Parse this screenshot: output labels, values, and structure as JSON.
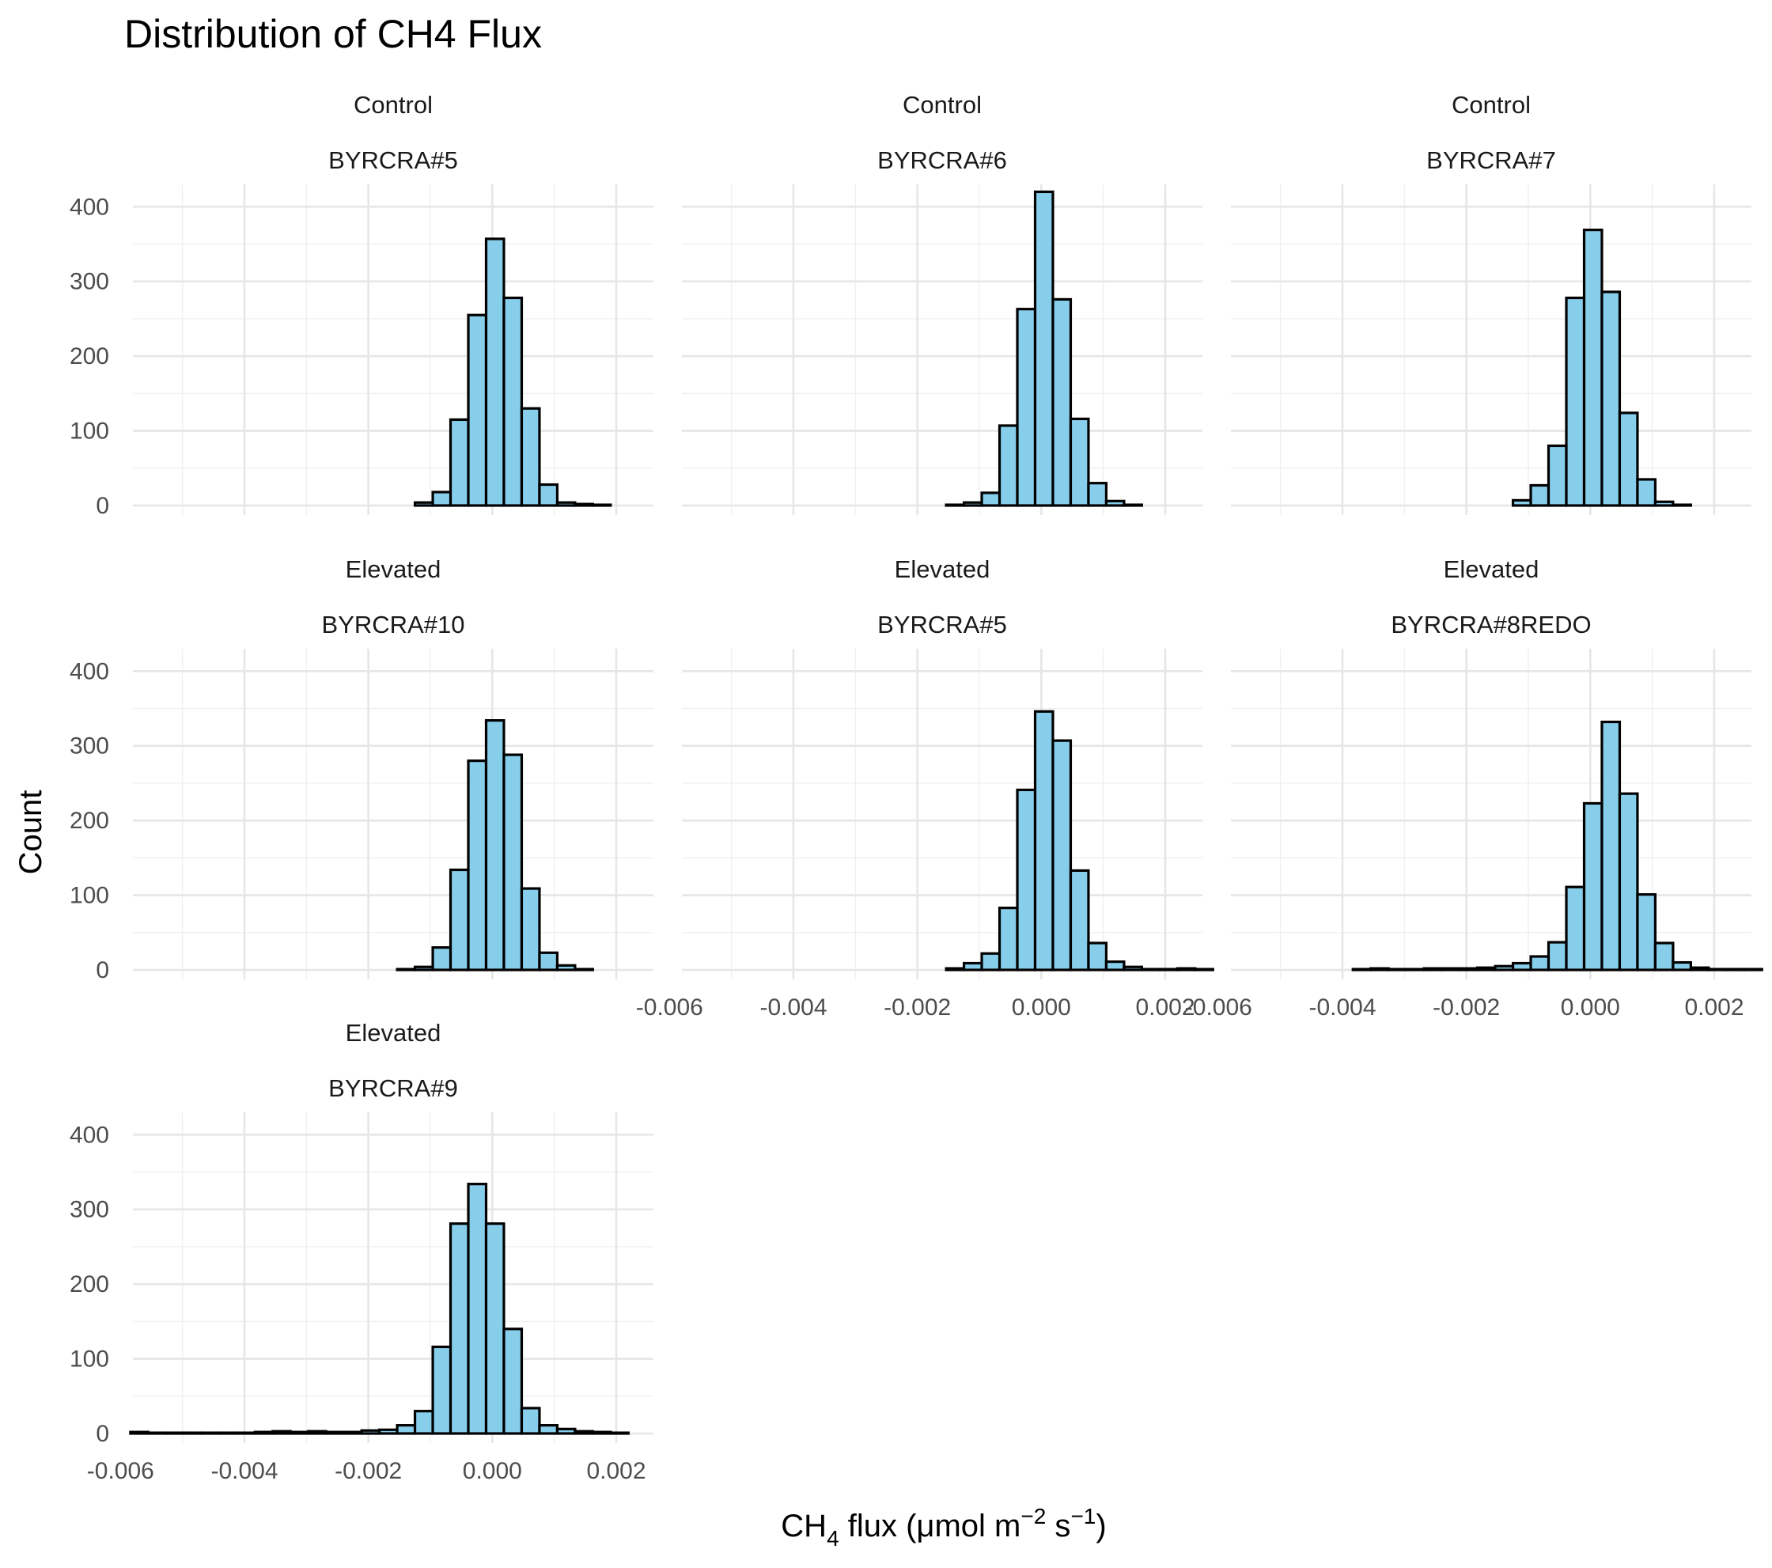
{
  "chart_data": {
    "type": "histogram",
    "title": "Distribution of CH4 Flux",
    "xlabel": {
      "base": "CH",
      "sub": "4",
      "text": " flux (μmol m",
      "sup1": "−2",
      "mid": " s",
      "sup2": "−1",
      "end": ")"
    },
    "ylabel": "Count",
    "bar_color": "#87CEEB",
    "bar_outline": "#000000",
    "xlim": [
      -0.0058,
      0.0026
    ],
    "ylim": [
      0,
      430
    ],
    "x_ticks": [
      -0.006,
      -0.004,
      -0.002,
      0.0,
      0.002
    ],
    "x_tick_labels": [
      "-0.006",
      "-0.004",
      "-0.002",
      "0.000",
      "0.002"
    ],
    "y_ticks": [
      0,
      100,
      200,
      300,
      400
    ],
    "y_tick_labels": [
      "0",
      "100",
      "200",
      "300",
      "400"
    ],
    "bins": 30,
    "bin_start": -0.00584,
    "bin_width": 0.000287,
    "facets": [
      {
        "treatment": "Control",
        "plot": "BYRCRA#5",
        "counts": [
          0,
          0,
          0,
          0,
          0,
          0,
          0,
          0,
          0,
          0,
          0,
          0,
          0,
          0,
          0,
          0,
          4,
          18,
          115,
          255,
          357,
          278,
          130,
          28,
          4,
          2,
          1,
          0,
          0,
          0
        ]
      },
      {
        "treatment": "Control",
        "plot": "BYRCRA#6",
        "counts": [
          0,
          0,
          0,
          0,
          0,
          0,
          0,
          0,
          0,
          0,
          0,
          0,
          0,
          0,
          0,
          1,
          4,
          17,
          107,
          263,
          420,
          276,
          116,
          30,
          6,
          1,
          0,
          0,
          0,
          0
        ]
      },
      {
        "treatment": "Control",
        "plot": "BYRCRA#7",
        "counts": [
          0,
          0,
          0,
          0,
          0,
          0,
          0,
          0,
          0,
          0,
          0,
          0,
          0,
          0,
          0,
          0,
          7,
          27,
          80,
          278,
          369,
          286,
          124,
          35,
          5,
          1,
          0,
          0,
          0,
          0
        ]
      },
      {
        "treatment": "Elevated",
        "plot": "BYRCRA#10",
        "counts": [
          0,
          0,
          0,
          0,
          0,
          0,
          0,
          0,
          0,
          0,
          0,
          0,
          0,
          0,
          0,
          1,
          4,
          30,
          134,
          280,
          334,
          288,
          109,
          23,
          6,
          1,
          0,
          0,
          0,
          0
        ]
      },
      {
        "treatment": "Elevated",
        "plot": "BYRCRA#5",
        "counts": [
          0,
          0,
          0,
          0,
          0,
          0,
          0,
          0,
          0,
          0,
          0,
          0,
          0,
          0,
          0,
          2,
          9,
          22,
          83,
          241,
          346,
          307,
          133,
          36,
          11,
          4,
          1,
          1,
          2,
          1
        ]
      },
      {
        "treatment": "Elevated",
        "plot": "BYRCRA#8REDO",
        "counts": [
          0,
          0,
          0,
          0,
          0,
          0,
          0,
          1,
          2,
          1,
          1,
          2,
          2,
          2,
          3,
          5,
          9,
          18,
          37,
          111,
          223,
          332,
          236,
          101,
          36,
          10,
          3,
          1,
          1,
          1
        ]
      },
      {
        "treatment": "Elevated",
        "plot": "BYRCRA#9",
        "counts": [
          2,
          1,
          1,
          1,
          1,
          1,
          1,
          2,
          3,
          2,
          3,
          2,
          2,
          4,
          5,
          11,
          30,
          116,
          281,
          334,
          281,
          140,
          34,
          11,
          6,
          3,
          2,
          1,
          0,
          0
        ]
      }
    ]
  }
}
